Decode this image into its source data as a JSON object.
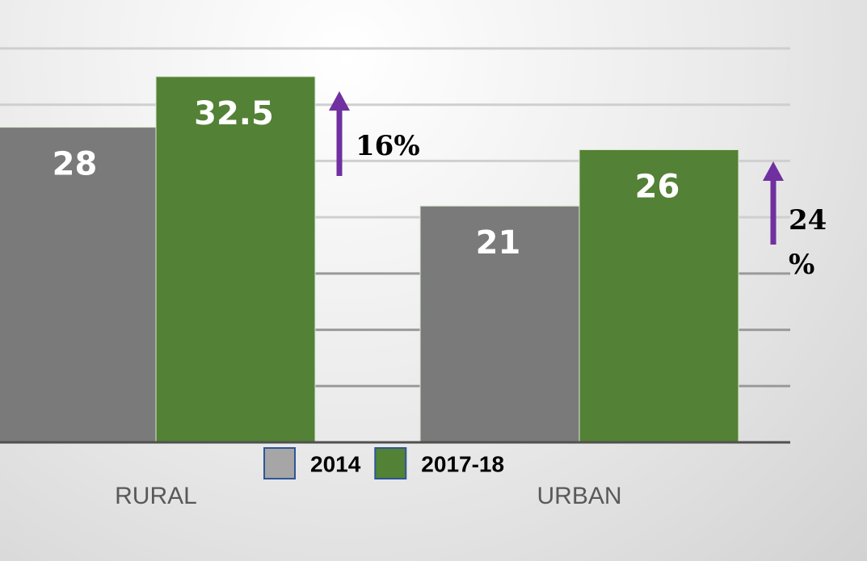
{
  "chart_data": {
    "type": "bar",
    "categories": [
      "RURAL",
      "URBAN"
    ],
    "series": [
      {
        "name": "2014",
        "color": "#7a7a7a",
        "values": [
          28,
          21
        ]
      },
      {
        "name": "2017-18",
        "color": "#538135",
        "values": [
          32.5,
          26
        ]
      }
    ],
    "ylim": [
      0,
      35
    ],
    "yticks": [
      0,
      5,
      10,
      15,
      20,
      25,
      30,
      35
    ],
    "grid": true,
    "annotations": [
      {
        "lines": [
          "16%"
        ]
      },
      {
        "lines": [
          "24",
          "%"
        ]
      }
    ],
    "annotation_color": "#7030a0"
  }
}
